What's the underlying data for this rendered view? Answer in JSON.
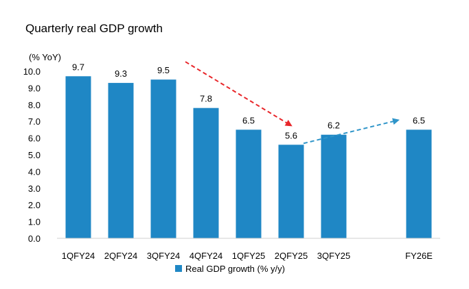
{
  "chart_data": {
    "type": "bar",
    "title": "Quarterly real GDP growth",
    "y_unit_label": "(% YoY)",
    "categories": [
      "1QFY24",
      "2QFY24",
      "3QFY24",
      "4QFY24",
      "1QFY25",
      "2QFY25",
      "3QFY25",
      "",
      "FY26E"
    ],
    "values": [
      9.7,
      9.3,
      9.5,
      7.8,
      6.5,
      5.6,
      6.2,
      null,
      6.5
    ],
    "data_labels": [
      "9.7",
      "9.3",
      "9.5",
      "7.8",
      "6.5",
      "5.6",
      "6.2",
      "",
      "6.5"
    ],
    "yticks": [
      "0.0",
      "1.0",
      "2.0",
      "3.0",
      "4.0",
      "5.0",
      "6.0",
      "7.0",
      "8.0",
      "9.0",
      "10.0"
    ],
    "ylim": [
      0,
      10
    ],
    "grid": false,
    "legend": {
      "position": "bottom",
      "label": "Real GDP growth (% y/y)"
    },
    "series": [
      {
        "name": "Real GDP growth (% y/y)",
        "color": "#1f87c5",
        "values": [
          9.7,
          9.3,
          9.5,
          7.8,
          6.5,
          5.6,
          6.2,
          null,
          6.5
        ]
      }
    ],
    "annotations": [
      {
        "type": "dashed-arrow",
        "color": "#e8262a",
        "from_category": "3QFY24",
        "to_category": "2QFY25"
      },
      {
        "type": "dashed-arrow",
        "color": "#2f95c9",
        "from_category": "2QFY25",
        "to_category": "FY26E"
      }
    ]
  }
}
